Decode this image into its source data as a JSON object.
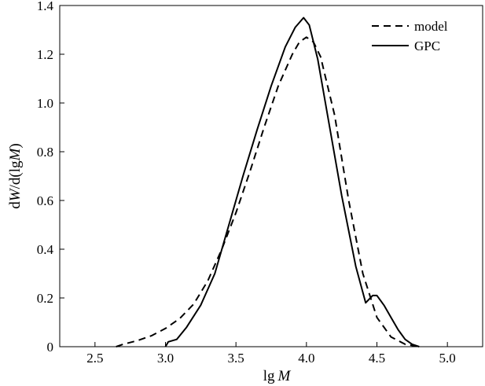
{
  "chart_data": {
    "type": "line",
    "title": "",
    "xlabel": {
      "prefix": "lg",
      "var": "M"
    },
    "ylabel": {
      "p1": "d",
      "v1": "W",
      "p2": "/d(lg",
      "v2": "M",
      "p3": ")"
    },
    "xlim": [
      2.25,
      5.25
    ],
    "ylim": [
      0,
      1.4
    ],
    "xticks": [
      2.5,
      3.0,
      3.5,
      4.0,
      4.5,
      5.0
    ],
    "xtick_labels": [
      "2.5",
      "3.0",
      "3.5",
      "4.0",
      "4.5",
      "5.0"
    ],
    "yticks": [
      0,
      0.2,
      0.4,
      0.6,
      0.8,
      1.0,
      1.2,
      1.4
    ],
    "ytick_labels": [
      "0",
      "0.2",
      "0.4",
      "0.6",
      "0.8",
      "1.0",
      "1.2",
      "1.4"
    ],
    "grid": false,
    "legend_position": "top-right",
    "series": [
      {
        "name": "model",
        "style": "dashed",
        "color": "#000000",
        "x": [
          2.65,
          2.7,
          2.8,
          2.9,
          3.0,
          3.1,
          3.2,
          3.3,
          3.4,
          3.5,
          3.6,
          3.7,
          3.8,
          3.9,
          3.95,
          4.0,
          4.05,
          4.1,
          4.2,
          4.3,
          4.4,
          4.5,
          4.6,
          4.7,
          4.8
        ],
        "y": [
          0.0,
          0.01,
          0.025,
          0.045,
          0.075,
          0.115,
          0.175,
          0.27,
          0.4,
          0.55,
          0.72,
          0.9,
          1.07,
          1.2,
          1.25,
          1.27,
          1.25,
          1.19,
          0.95,
          0.6,
          0.3,
          0.12,
          0.04,
          0.01,
          0.0
        ]
      },
      {
        "name": "GPC",
        "style": "solid",
        "color": "#000000",
        "x": [
          3.0,
          3.02,
          3.08,
          3.15,
          3.25,
          3.35,
          3.45,
          3.55,
          3.65,
          3.75,
          3.85,
          3.92,
          3.98,
          4.02,
          4.08,
          4.15,
          4.25,
          4.35,
          4.42,
          4.47,
          4.5,
          4.55,
          4.6,
          4.65,
          4.7,
          4.75,
          4.8
        ],
        "y": [
          0.0,
          0.02,
          0.03,
          0.08,
          0.17,
          0.3,
          0.5,
          0.7,
          0.89,
          1.07,
          1.23,
          1.31,
          1.35,
          1.32,
          1.18,
          0.95,
          0.62,
          0.33,
          0.18,
          0.21,
          0.21,
          0.17,
          0.12,
          0.07,
          0.03,
          0.01,
          0.0
        ]
      }
    ]
  }
}
